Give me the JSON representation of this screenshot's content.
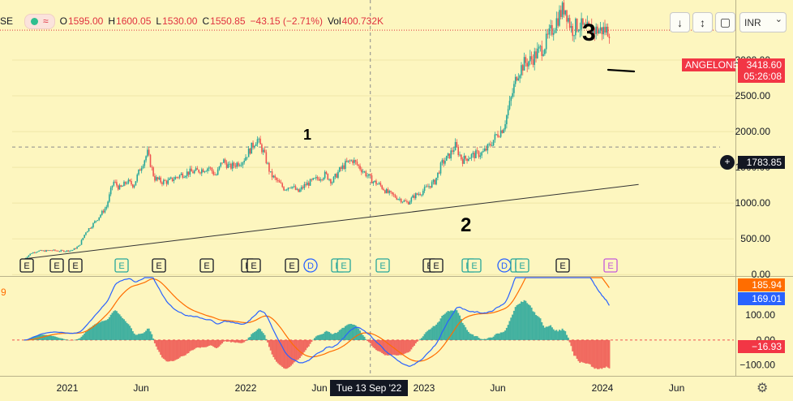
{
  "legend": {
    "symbol_fragment": "SE",
    "open_label": "O",
    "open": "1595.00",
    "high_label": "H",
    "high": "1600.05",
    "low_label": "L",
    "low": "1530.00",
    "close_label": "C",
    "close": "1550.85",
    "change": "−43.15 (−2.71%)",
    "volume_label": "Vol",
    "volume": "400.732K",
    "indicator_icon": "wave-icon"
  },
  "toolbar": {
    "down_icon": "↓",
    "collapse_icon": "↕",
    "fullscreen_icon": "▢",
    "currency": "INR",
    "currency_chevron": "⌄"
  },
  "price_tags": {
    "symbol": "ANGELONE",
    "last_price": "3418.60",
    "countdown": "05:26:08",
    "crosshair_price": "1783.85",
    "crosshair_plus": "+"
  },
  "macd_tags": {
    "signal_value": "185.94",
    "macd_value": "169.01",
    "histogram_value": "−16.93",
    "pane_marker": "9"
  },
  "crosshair_date": "Tue 13 Sep '22",
  "earnings_badge": "E",
  "dividend_badge": "D",
  "annotations": [
    "1",
    "2",
    "3"
  ],
  "colors": {
    "background": "#fdf6bf",
    "up": "#26a69a",
    "down": "#ef5350",
    "macd_line": "#2962ff",
    "signal_line": "#ff6d00",
    "price_tag": "#f23645",
    "macd_tag": "#2962ff",
    "signal_tag": "#ff6d00",
    "crosshair_tag": "#131722"
  },
  "chart_data": [
    {
      "type": "candlestick",
      "symbol": "ANGELONE",
      "currency": "INR",
      "y_axis_ticks": [
        0,
        500,
        1000,
        1500,
        2000,
        2500,
        3000
      ],
      "y_axis_labels": [
        "0.00",
        "500.00",
        "1000.00",
        "1500.00",
        "2000.00",
        "2500.00",
        "3000.00"
      ],
      "ylim": [
        -20,
        3840
      ],
      "x_axis_labels": [
        "2021",
        "Jun",
        "2022",
        "Jun",
        "2023",
        "Jun",
        "2024",
        "Jun"
      ],
      "x_axis_dates": [
        "2021-01-01",
        "2021-06-01",
        "2022-01-01",
        "2022-06-01",
        "2023-01-01",
        "2023-06-01",
        "2024-01-01",
        "2024-06-01"
      ],
      "series_close": {
        "dates": [
          "2020-10-05",
          "2020-10-19",
          "2020-11-02",
          "2020-11-16",
          "2020-11-30",
          "2020-12-14",
          "2020-12-28",
          "2021-01-11",
          "2021-01-25",
          "2021-02-08",
          "2021-02-22",
          "2021-03-08",
          "2021-03-22",
          "2021-04-05",
          "2021-04-19",
          "2021-05-03",
          "2021-05-17",
          "2021-05-31",
          "2021-06-14",
          "2021-06-28",
          "2021-07-12",
          "2021-07-26",
          "2021-08-09",
          "2021-08-23",
          "2021-09-06",
          "2021-09-20",
          "2021-10-04",
          "2021-10-18",
          "2021-11-01",
          "2021-11-15",
          "2021-11-29",
          "2021-12-13",
          "2021-12-27",
          "2022-01-10",
          "2022-01-24",
          "2022-02-07",
          "2022-02-21",
          "2022-03-07",
          "2022-03-21",
          "2022-04-04",
          "2022-04-18",
          "2022-05-02",
          "2022-05-16",
          "2022-05-30",
          "2022-06-13",
          "2022-06-27",
          "2022-07-11",
          "2022-07-25",
          "2022-08-08",
          "2022-08-22",
          "2022-09-05",
          "2022-09-19",
          "2022-10-03",
          "2022-10-17",
          "2022-10-31",
          "2022-11-14",
          "2022-11-28",
          "2022-12-12",
          "2022-12-26",
          "2023-01-09",
          "2023-01-23",
          "2023-02-06",
          "2023-02-20",
          "2023-03-06",
          "2023-03-20",
          "2023-04-03",
          "2023-04-17",
          "2023-05-01",
          "2023-05-15",
          "2023-05-29",
          "2023-06-12",
          "2023-06-26",
          "2023-07-10",
          "2023-07-24",
          "2023-08-07",
          "2023-08-21",
          "2023-09-04",
          "2023-09-18",
          "2023-10-02",
          "2023-10-16",
          "2023-10-30",
          "2023-11-13",
          "2023-11-27",
          "2023-12-11",
          "2023-12-25",
          "2024-01-01",
          "2024-01-08",
          "2024-01-15"
        ],
        "values": [
          220,
          300,
          330,
          330,
          340,
          330,
          330,
          340,
          400,
          600,
          700,
          820,
          950,
          1300,
          1200,
          1300,
          1250,
          1500,
          1700,
          1350,
          1300,
          1300,
          1350,
          1400,
          1430,
          1440,
          1470,
          1500,
          1380,
          1600,
          1500,
          1550,
          1600,
          1750,
          1900,
          1700,
          1400,
          1300,
          1200,
          1250,
          1150,
          1250,
          1300,
          1350,
          1400,
          1300,
          1450,
          1550,
          1600,
          1500,
          1400,
          1300,
          1250,
          1150,
          1100,
          1050,
          1000,
          1100,
          1150,
          1230,
          1300,
          1550,
          1650,
          1800,
          1600,
          1650,
          1680,
          1700,
          1800,
          1950,
          2050,
          2400,
          2800,
          2950,
          3000,
          3100,
          3200,
          3400,
          3600,
          3750,
          3418.6,
          3500,
          3418.6,
          3418.6,
          3418.6,
          3418.6,
          3418.6,
          3418.6
        ]
      },
      "last_price": 3418.6,
      "crosshair_price": 1783.85,
      "trendline": {
        "start": {
          "date": "2020-10-05",
          "price": 220
        },
        "end": {
          "date": "2024-03-15",
          "price": 1260
        }
      },
      "annotations_text": [
        "1",
        "2",
        "3"
      ]
    },
    {
      "type": "macd",
      "y_axis_ticks": [
        -100,
        0,
        100
      ],
      "y_axis_labels": [
        "−100.00",
        "0.00",
        "100.00"
      ],
      "ylim": [
        -140,
        250
      ],
      "macd_last": 169.01,
      "signal_last": 185.94,
      "histogram_last": -16.93
    }
  ]
}
